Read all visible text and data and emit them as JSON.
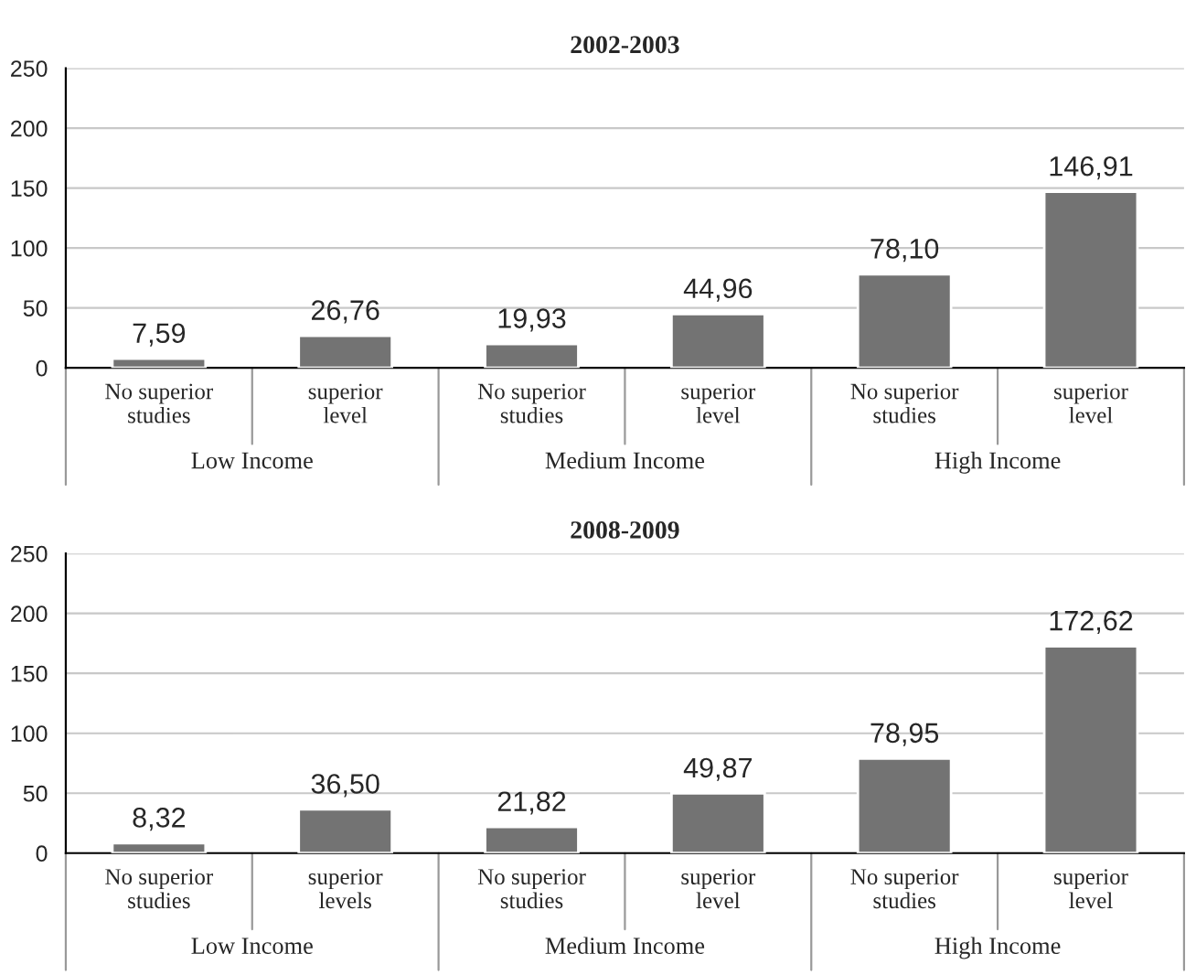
{
  "chart_data": [
    {
      "type": "bar",
      "title": "2002-2003",
      "categories": [
        "No superior\nstudies",
        "superior\nlevel",
        "No superior\nstudies",
        "superior\nlevel",
        "No superior\nstudies",
        "superior\nlevel"
      ],
      "values": [
        7.59,
        26.76,
        19.93,
        44.96,
        78.1,
        146.91
      ],
      "value_labels": [
        "7,59",
        "26,76",
        "19,93",
        "44,96",
        "78,10",
        "146,91"
      ],
      "color": "#737373",
      "ylim": [
        0,
        250
      ],
      "yticks": [
        0,
        50,
        100,
        150,
        200,
        250
      ],
      "grid": "y",
      "annotations": [
        "Low Income",
        "Medium Income",
        "High Income"
      ]
    },
    {
      "type": "bar",
      "title": "2008-2009",
      "categories": [
        "No superior\nstudies",
        "superior\nlevels",
        "No superior\nstudies",
        "superior\nlevel",
        "No superior\nstudies",
        "superior\nlevel"
      ],
      "values": [
        8.32,
        36.5,
        21.82,
        49.87,
        78.95,
        172.62
      ],
      "value_labels": [
        "8,32",
        "36,50",
        "21,82",
        "49,87",
        "78,95",
        "172,62"
      ],
      "color": "#737373",
      "ylim": [
        0,
        250
      ],
      "yticks": [
        0,
        50,
        100,
        150,
        200,
        250
      ],
      "grid": "y",
      "annotations": [
        "Low Income",
        "Medium Income",
        "High Income"
      ]
    }
  ]
}
